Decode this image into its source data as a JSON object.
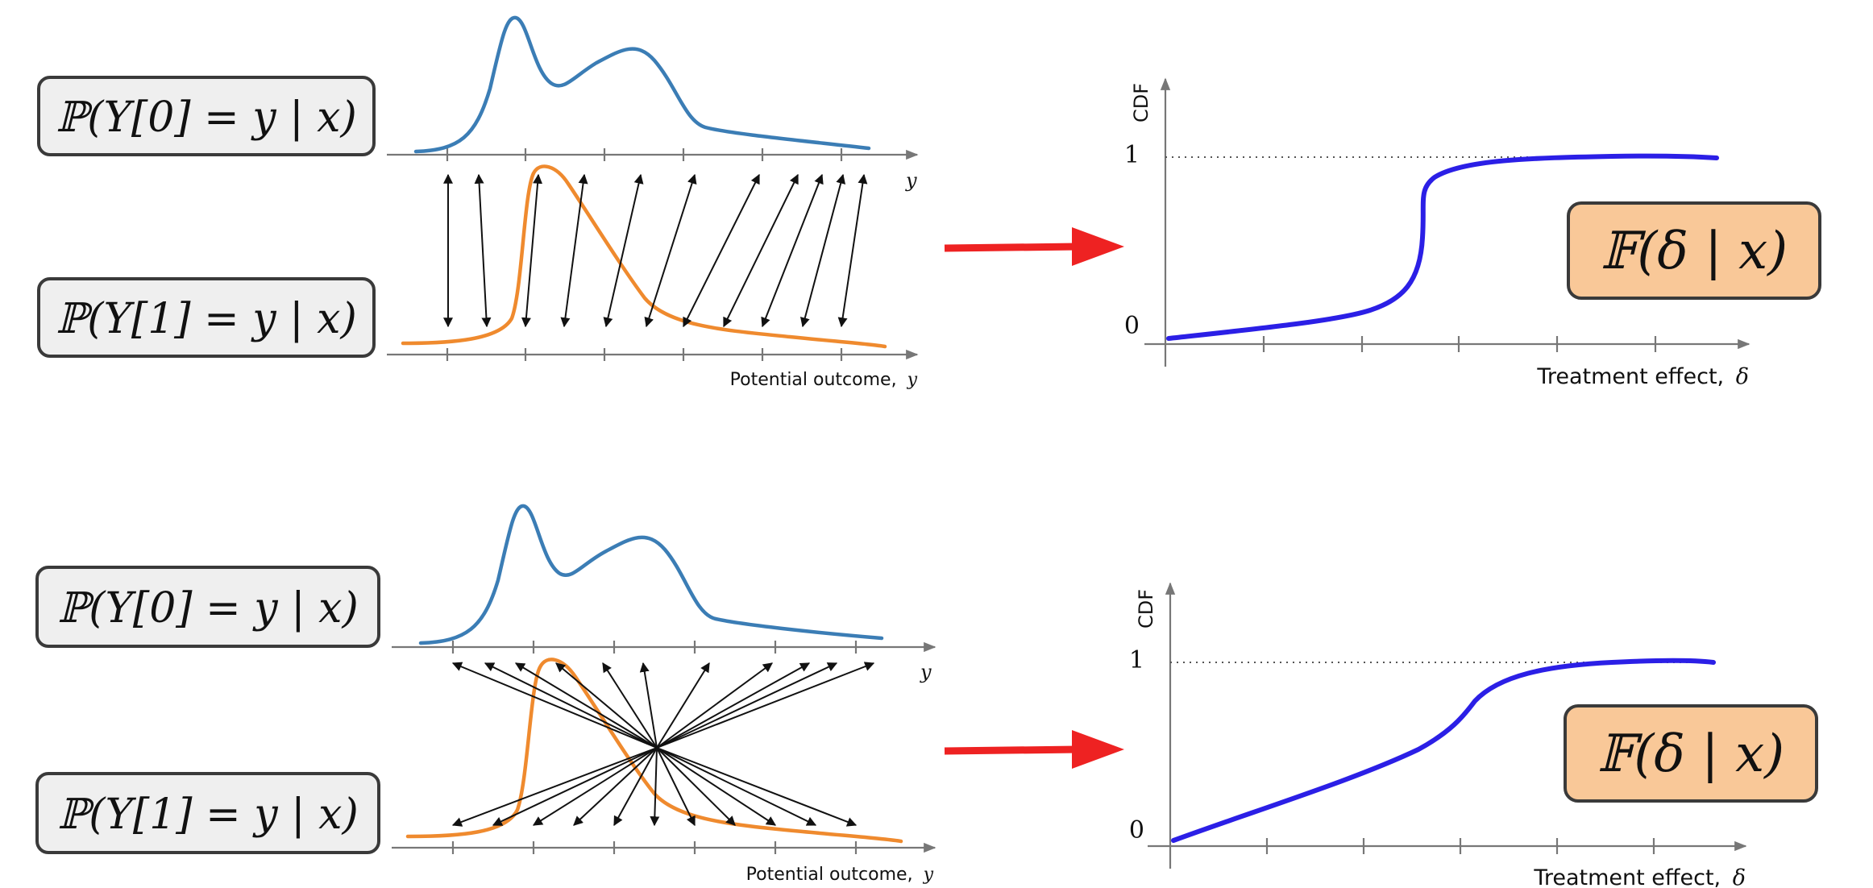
{
  "panels": [
    {
      "id": "top",
      "label_y0": "ℙ(Y[0] = y | x)",
      "label_y1": "ℙ(Y[1] = y | x)",
      "axis_symbol_y": "y",
      "axis_label_potential": "Potential outcome,",
      "axis_label_potential_symbol": "y",
      "cdf_axis_label": "CDF",
      "cdf_tick_one": "1",
      "cdf_tick_zero": "0",
      "cdf_x_label": "Treatment effect,",
      "cdf_x_symbol": "δ",
      "cdf_box_label": "𝔽(δ | x)"
    },
    {
      "id": "bottom",
      "label_y0": "ℙ(Y[0] = y | x)",
      "label_y1": "ℙ(Y[1] = y | x)",
      "axis_symbol_y": "y",
      "axis_label_potential": "Potential outcome,",
      "axis_label_potential_symbol": "y",
      "cdf_axis_label": "CDF",
      "cdf_tick_one": "1",
      "cdf_tick_zero": "0",
      "cdf_x_label": "Treatment effect,",
      "cdf_x_symbol": "δ",
      "cdf_box_label": "𝔽(δ | x)"
    }
  ],
  "colors": {
    "y0_density": "#3b7db5",
    "y1_density": "#ef8a2e",
    "cdf_curve": "#2b1fe6",
    "transition_arrow": "#ee2222",
    "label_box_fill": "#efefef",
    "cdf_box_fill": "#f9c898"
  },
  "icons": {
    "transition": "right-arrow-icon",
    "mapping": "double-headed-arrow-icon"
  }
}
